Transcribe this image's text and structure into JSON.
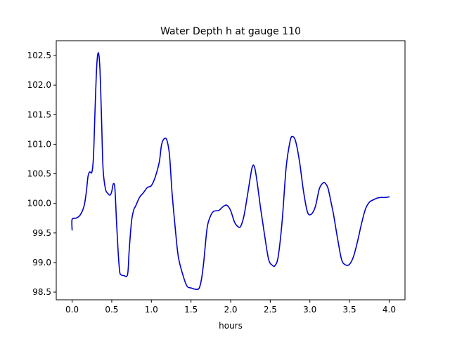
{
  "chart_data": {
    "type": "line",
    "title": "Water Depth h at gauge 110",
    "xlabel": "hours",
    "ylabel": "",
    "xlim": [
      -0.2,
      4.2
    ],
    "ylim": [
      98.37,
      102.75
    ],
    "xticks": [
      0.0,
      0.5,
      1.0,
      1.5,
      2.0,
      2.5,
      3.0,
      3.5,
      4.0
    ],
    "xtick_labels": [
      "0.0",
      "0.5",
      "1.0",
      "1.5",
      "2.0",
      "2.5",
      "3.0",
      "3.5",
      "4.0"
    ],
    "yticks": [
      98.5,
      99.0,
      99.5,
      100.0,
      100.5,
      101.0,
      101.5,
      102.0,
      102.5
    ],
    "ytick_labels": [
      "98.5",
      "99.0",
      "99.5",
      "100.0",
      "100.5",
      "101.0",
      "101.5",
      "102.0",
      "102.5"
    ],
    "grid": false,
    "legend": "none",
    "line_color": "#0000cc",
    "series": [
      {
        "x": [
          0.0,
          0.0,
          0.05,
          0.1,
          0.15,
          0.18,
          0.2,
          0.22,
          0.25,
          0.27,
          0.29,
          0.31,
          0.33,
          0.35,
          0.37,
          0.39,
          0.42,
          0.45,
          0.48,
          0.5,
          0.52,
          0.54,
          0.56,
          0.58,
          0.6,
          0.62,
          0.65,
          0.7,
          0.72,
          0.75,
          0.78,
          0.8,
          0.85,
          0.9,
          0.95,
          1.0,
          1.05,
          1.1,
          1.13,
          1.17,
          1.2,
          1.23,
          1.26,
          1.3,
          1.34,
          1.4,
          1.45,
          1.5,
          1.55,
          1.6,
          1.63,
          1.66,
          1.7,
          1.73,
          1.78,
          1.85,
          1.9,
          1.95,
          2.0,
          2.05,
          2.1,
          2.13,
          2.17,
          2.22,
          2.27,
          2.3,
          2.33,
          2.38,
          2.43,
          2.48,
          2.53,
          2.56,
          2.6,
          2.65,
          2.7,
          2.75,
          2.78,
          2.82,
          2.87,
          2.92,
          2.97,
          3.02,
          3.07,
          3.12,
          3.17,
          3.2,
          3.23,
          3.27,
          3.3,
          3.35,
          3.4,
          3.45,
          3.5,
          3.55,
          3.6,
          3.65,
          3.7,
          3.75,
          3.8,
          3.85,
          3.9,
          3.95,
          4.0
        ],
        "y": [
          99.55,
          99.73,
          99.75,
          99.8,
          99.95,
          100.2,
          100.45,
          100.53,
          100.53,
          100.8,
          101.6,
          102.3,
          102.55,
          102.3,
          101.5,
          100.6,
          100.25,
          100.17,
          100.14,
          100.2,
          100.33,
          100.25,
          99.7,
          99.2,
          98.85,
          98.79,
          98.78,
          98.8,
          99.2,
          99.7,
          99.9,
          99.95,
          100.1,
          100.18,
          100.27,
          100.3,
          100.45,
          100.7,
          101.0,
          101.1,
          101.05,
          100.8,
          100.2,
          99.6,
          99.1,
          98.78,
          98.6,
          98.57,
          98.55,
          98.56,
          98.7,
          99.0,
          99.55,
          99.73,
          99.86,
          99.88,
          99.94,
          99.97,
          99.88,
          99.68,
          99.6,
          99.62,
          99.8,
          100.2,
          100.6,
          100.62,
          100.4,
          99.9,
          99.45,
          99.05,
          98.95,
          98.95,
          99.1,
          99.7,
          100.6,
          101.05,
          101.13,
          101.05,
          100.7,
          100.2,
          99.85,
          99.82,
          99.95,
          100.25,
          100.35,
          100.33,
          100.25,
          100.0,
          99.8,
          99.4,
          99.05,
          98.96,
          98.97,
          99.1,
          99.35,
          99.65,
          99.9,
          100.02,
          100.06,
          100.09,
          100.1,
          100.1,
          100.11
        ]
      }
    ]
  }
}
